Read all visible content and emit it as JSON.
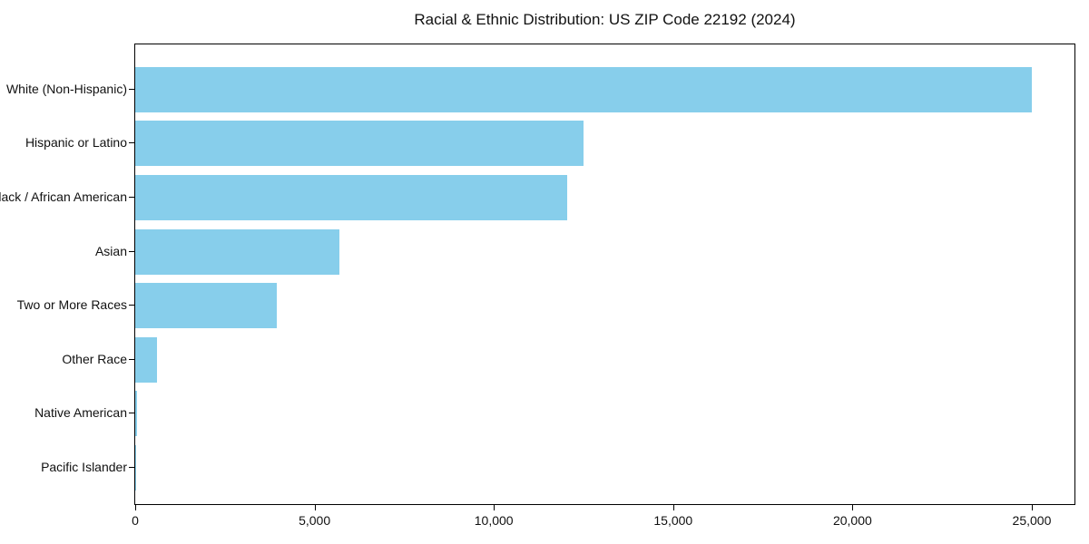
{
  "title": "Racial & Ethnic Distribution: US ZIP Code 22192 (2024)",
  "chart_data": {
    "type": "bar",
    "orientation": "horizontal",
    "title": "Racial & Ethnic Distribution: US ZIP Code 22192 (2024)",
    "xlabel": "",
    "ylabel": "",
    "categories": [
      "White (Non-Hispanic)",
      "Hispanic or Latino",
      "Black / African American",
      "Asian",
      "Two or More Races",
      "Other Race",
      "Native American",
      "Pacific Islander"
    ],
    "values": [
      25000,
      12500,
      12050,
      5700,
      3950,
      600,
      50,
      20
    ],
    "xlim": [
      0,
      26190
    ],
    "xticks": [
      0,
      5000,
      10000,
      15000,
      20000,
      25000
    ],
    "xtick_labels": [
      "0",
      "5,000",
      "10,000",
      "15,000",
      "20,000",
      "25,000"
    ],
    "grid": false,
    "legend": "none",
    "bar_color": "#87CEEB",
    "frame_color": "#000000",
    "background_color": "#ffffff"
  }
}
